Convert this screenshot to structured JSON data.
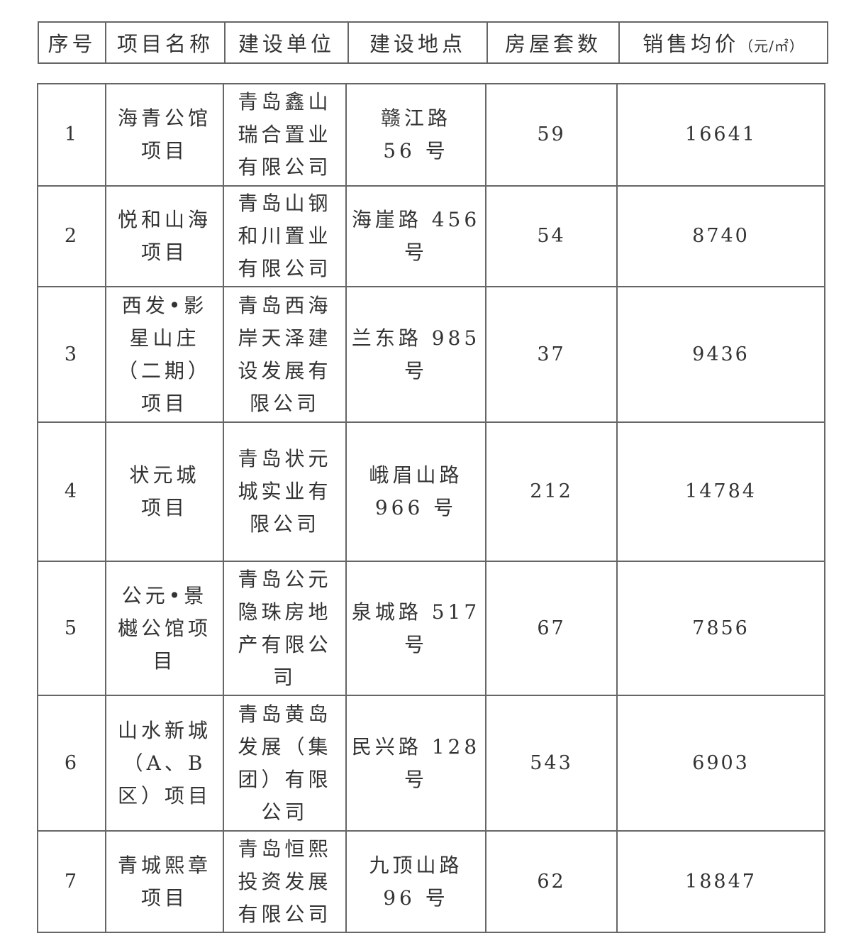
{
  "header": {
    "columns": [
      "序号",
      "项目名称",
      "建设单位",
      "建设地点",
      "房屋套数",
      "销售均价"
    ],
    "price_unit": "（元/㎡）"
  },
  "rows": [
    {
      "no": "1",
      "name": "海青公馆\n项目",
      "developer": "青岛鑫山\n瑞合置业\n有限公司",
      "location": "赣江路\n56 号",
      "units": "59",
      "price": "16641"
    },
    {
      "no": "2",
      "name": "悦和山海\n项目",
      "developer": "青岛山钢\n和川置业\n有限公司",
      "location": "海崖路 456\n号",
      "units": "54",
      "price": "8740"
    },
    {
      "no": "3",
      "name": "西发•影\n星山庄\n（二期）\n项目",
      "developer": "青岛西海\n岸天泽建\n设发展有\n限公司",
      "location": "兰东路 985\n号",
      "units": "37",
      "price": "9436"
    },
    {
      "no": "4",
      "name": "状元城\n项目",
      "developer": "青岛状元\n城实业有\n限公司",
      "location": "峨眉山路\n966 号",
      "units": "212",
      "price": "14784"
    },
    {
      "no": "5",
      "name": "公元•景\n樾公馆项\n目",
      "developer": "青岛公元\n隐珠房地\n产有限公\n司",
      "location": "泉城路 517\n号",
      "units": "67",
      "price": "7856"
    },
    {
      "no": "6",
      "name": "山水新城\n（A、B\n区）项目",
      "developer": "青岛黄岛\n发展（集\n团）有限\n公司",
      "location": "民兴路 128\n号",
      "units": "543",
      "price": "6903"
    },
    {
      "no": "7",
      "name": "青城熙章\n项目",
      "developer": "青岛恒熙\n投资发展\n有限公司",
      "location": "九顶山路\n96 号",
      "units": "62",
      "price": "18847"
    }
  ]
}
